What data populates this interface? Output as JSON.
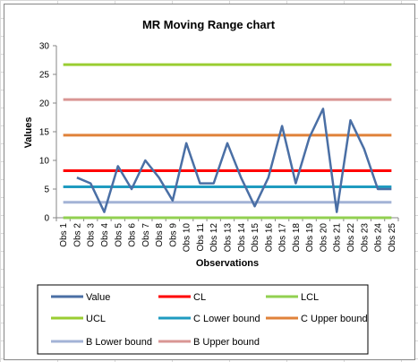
{
  "chart_data": {
    "type": "line",
    "title": "MR Moving Range chart",
    "xlabel": "Observations",
    "ylabel": "Values",
    "ylim": [
      0,
      30
    ],
    "yticks": [
      0,
      5,
      10,
      15,
      20,
      25,
      30
    ],
    "grid": false,
    "legend_position": "bottom",
    "categories": [
      "Obs 1",
      "Obs 2",
      "Obs 3",
      "Obs 4",
      "Obs 5",
      "Obs 6",
      "Obs 7",
      "Obs 8",
      "Obs 9",
      "Obs 10",
      "Obs 11",
      "Obs 12",
      "Obs 13",
      "Obs 14",
      "Obs 15",
      "Obs 16",
      "Obs 17",
      "Obs 18",
      "Obs 19",
      "Obs 20",
      "Obs 21",
      "Obs 22",
      "Obs 23",
      "Obs 24",
      "Obs 25"
    ],
    "series": [
      {
        "name": "Value",
        "color": "#4a6fa5",
        "width": 2.5,
        "values": [
          null,
          7,
          6,
          1,
          9,
          5,
          10,
          7,
          3,
          13,
          6,
          6,
          13,
          7,
          2,
          7,
          16,
          6,
          14,
          19,
          1,
          17,
          12,
          5,
          5
        ]
      },
      {
        "name": "CL",
        "color": "#ff0000",
        "width": 3,
        "values": [
          8.2,
          8.2,
          8.2,
          8.2,
          8.2,
          8.2,
          8.2,
          8.2,
          8.2,
          8.2,
          8.2,
          8.2,
          8.2,
          8.2,
          8.2,
          8.2,
          8.2,
          8.2,
          8.2,
          8.2,
          8.2,
          8.2,
          8.2,
          8.2,
          8.2
        ]
      },
      {
        "name": "LCL",
        "color": "#92d050",
        "width": 3,
        "values": [
          0,
          0,
          0,
          0,
          0,
          0,
          0,
          0,
          0,
          0,
          0,
          0,
          0,
          0,
          0,
          0,
          0,
          0,
          0,
          0,
          0,
          0,
          0,
          0,
          0
        ]
      },
      {
        "name": "UCL",
        "color": "#9acd32",
        "width": 3,
        "values": [
          26.7,
          26.7,
          26.7,
          26.7,
          26.7,
          26.7,
          26.7,
          26.7,
          26.7,
          26.7,
          26.7,
          26.7,
          26.7,
          26.7,
          26.7,
          26.7,
          26.7,
          26.7,
          26.7,
          26.7,
          26.7,
          26.7,
          26.7,
          26.7,
          26.7
        ]
      },
      {
        "name": "C Lower bound",
        "color": "#1f9bc0",
        "width": 3,
        "values": [
          5.4,
          5.4,
          5.4,
          5.4,
          5.4,
          5.4,
          5.4,
          5.4,
          5.4,
          5.4,
          5.4,
          5.4,
          5.4,
          5.4,
          5.4,
          5.4,
          5.4,
          5.4,
          5.4,
          5.4,
          5.4,
          5.4,
          5.4,
          5.4,
          5.4
        ]
      },
      {
        "name": "C Upper bound",
        "color": "#e0823a",
        "width": 3,
        "values": [
          14.4,
          14.4,
          14.4,
          14.4,
          14.4,
          14.4,
          14.4,
          14.4,
          14.4,
          14.4,
          14.4,
          14.4,
          14.4,
          14.4,
          14.4,
          14.4,
          14.4,
          14.4,
          14.4,
          14.4,
          14.4,
          14.4,
          14.4,
          14.4,
          14.4
        ]
      },
      {
        "name": "B Lower bound",
        "color": "#a3b3d6",
        "width": 3,
        "values": [
          2.7,
          2.7,
          2.7,
          2.7,
          2.7,
          2.7,
          2.7,
          2.7,
          2.7,
          2.7,
          2.7,
          2.7,
          2.7,
          2.7,
          2.7,
          2.7,
          2.7,
          2.7,
          2.7,
          2.7,
          2.7,
          2.7,
          2.7,
          2.7,
          2.7
        ]
      },
      {
        "name": "B Upper bound",
        "color": "#d99694",
        "width": 3,
        "values": [
          20.6,
          20.6,
          20.6,
          20.6,
          20.6,
          20.6,
          20.6,
          20.6,
          20.6,
          20.6,
          20.6,
          20.6,
          20.6,
          20.6,
          20.6,
          20.6,
          20.6,
          20.6,
          20.6,
          20.6,
          20.6,
          20.6,
          20.6,
          20.6,
          20.6
        ]
      }
    ],
    "legend": {
      "rows": [
        [
          "Value",
          "CL",
          "LCL"
        ],
        [
          "UCL",
          "C Lower bound",
          "C Upper bound"
        ],
        [
          "B Lower bound",
          "B Upper bound"
        ]
      ]
    }
  }
}
